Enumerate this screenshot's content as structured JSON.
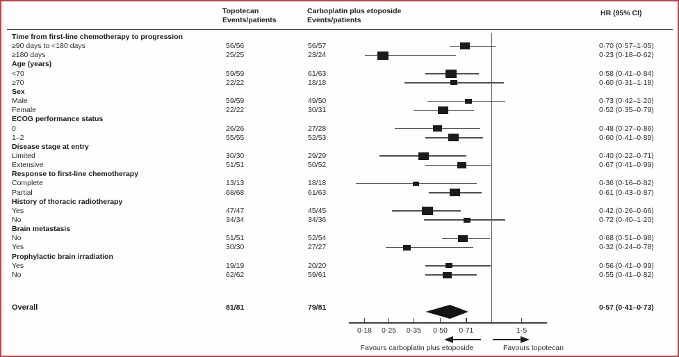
{
  "chart_data": {
    "type": "forest",
    "scale": "log",
    "col_headers": {
      "topotecan": "Topotecan",
      "carboplatin": "Carboplatin plus etoposide",
      "events": "Events/patients",
      "hr": "HR (95% CI)"
    },
    "axis": {
      "ticks": [
        {
          "v": 0.18,
          "label": "0·18"
        },
        {
          "v": 0.25,
          "label": "0·25"
        },
        {
          "v": 0.35,
          "label": "0·35"
        },
        {
          "v": 0.5,
          "label": "0·50"
        },
        {
          "v": 0.71,
          "label": "0·71"
        },
        {
          "v": 1.5,
          "label": "1·5"
        }
      ],
      "reference_value": 1.0,
      "xlim": [
        0.16,
        1.9
      ]
    },
    "favours": {
      "left": "Favours carboplatin plus etoposide",
      "right": "Favours topotecan"
    },
    "rows": [
      {
        "type": "section",
        "label": "Time from first-line chemotherapy to progression"
      },
      {
        "type": "item",
        "label": "≥90 days to <180 days",
        "t1": "56/56",
        "t2": "56/57",
        "hr": 0.7,
        "lo": 0.57,
        "hi": 1.05,
        "hr_text": "0·70 (0·57–1·05)",
        "sq": 14
      },
      {
        "type": "item",
        "label": "≥180 days",
        "t1": "25/25",
        "t2": "23/24",
        "hr": 0.23,
        "lo": 0.18,
        "hi": 0.62,
        "hr_text": "0·23 (0·18–0·62)",
        "sq": 16
      },
      {
        "type": "section",
        "label": "Age (years)"
      },
      {
        "type": "item",
        "label": "<70",
        "t1": "59/59",
        "t2": "61/63",
        "hr": 0.58,
        "lo": 0.41,
        "hi": 0.84,
        "hr_text": "0·58 (0·41–0·84)",
        "sq": 16
      },
      {
        "type": "item",
        "label": "≥70",
        "t1": "22/22",
        "t2": "18/18",
        "hr": 0.6,
        "lo": 0.31,
        "hi": 1.18,
        "hr_text": "0·60 (0·31–1·18)",
        "sq": 10
      },
      {
        "type": "section",
        "label": "Sex"
      },
      {
        "type": "item",
        "label": "Male",
        "t1": "59/59",
        "t2": "49/50",
        "hr": 0.73,
        "lo": 0.42,
        "hi": 1.2,
        "hr_text": "0·73 (0·42–1·20)",
        "sq": 10
      },
      {
        "type": "item",
        "label": "Female",
        "t1": "22/22",
        "t2": "30/31",
        "hr": 0.52,
        "lo": 0.35,
        "hi": 0.79,
        "hr_text": "0·52 (0·35–0·79)",
        "sq": 15
      },
      {
        "type": "section",
        "label": "ECOG performance status"
      },
      {
        "type": "item",
        "label": "0",
        "t1": "26/26",
        "t2": "27/28",
        "hr": 0.48,
        "lo": 0.27,
        "hi": 0.86,
        "hr_text": "0·48 (0·27–0·86)",
        "sq": 13
      },
      {
        "type": "item",
        "label": "1–2",
        "t1": "55/55",
        "t2": "52/53",
        "hr": 0.6,
        "lo": 0.41,
        "hi": 0.89,
        "hr_text": "0·60 (0·41–0·89)",
        "sq": 15
      },
      {
        "type": "section",
        "label": "Disease stage at entry"
      },
      {
        "type": "item",
        "label": "Limited",
        "t1": "30/30",
        "t2": "29/29",
        "hr": 0.4,
        "lo": 0.22,
        "hi": 0.71,
        "hr_text": "0·40 (0·22–0·71)",
        "sq": 15
      },
      {
        "type": "item",
        "label": "Extensive",
        "t1": "51/51",
        "t2": "50/52",
        "hr": 0.67,
        "lo": 0.41,
        "hi": 0.99,
        "hr_text": "0·67 (0·41–0·99)",
        "sq": 13
      },
      {
        "type": "section",
        "label": "Response to first-line chemotherapy"
      },
      {
        "type": "item",
        "label": "Complete",
        "t1": "13/13",
        "t2": "18/18",
        "hr": 0.36,
        "lo": 0.16,
        "hi": 0.82,
        "hr_text": "0·36 (0·16–0·82)",
        "sq": 9
      },
      {
        "type": "item",
        "label": "Partial",
        "t1": "68/68",
        "t2": "61/63",
        "hr": 0.61,
        "lo": 0.43,
        "hi": 0.87,
        "hr_text": "0·61 (0·43–0·87)",
        "sq": 15
      },
      {
        "type": "section",
        "label": "History of thoracic radiotherapy"
      },
      {
        "type": "item",
        "label": "Yes",
        "t1": "47/47",
        "t2": "45/45",
        "hr": 0.42,
        "lo": 0.26,
        "hi": 0.66,
        "hr_text": "0·42 (0·26–0·66)",
        "sq": 16
      },
      {
        "type": "item",
        "label": "No",
        "t1": "34/34",
        "t2": "34/36",
        "hr": 0.72,
        "lo": 0.4,
        "hi": 1.2,
        "hr_text": "0·72 (0·40–1·20)",
        "sq": 10
      },
      {
        "type": "section",
        "label": "Brain metastasis"
      },
      {
        "type": "item",
        "label": "No",
        "t1": "51/51",
        "t2": "52/54",
        "hr": 0.68,
        "lo": 0.51,
        "hi": 0.98,
        "hr_text": "0·68 (0·51–0·98)",
        "sq": 14
      },
      {
        "type": "item",
        "label": "Yes",
        "t1": "30/30",
        "t2": "27/27",
        "hr": 0.32,
        "lo": 0.24,
        "hi": 0.78,
        "hr_text": "0·32 (0·24–0·78)",
        "sq": 11
      },
      {
        "type": "section",
        "label": "Prophylactic brain irradiation"
      },
      {
        "type": "item",
        "label": "Yes",
        "t1": "19/19",
        "t2": "20/20",
        "hr": 0.56,
        "lo": 0.41,
        "hi": 0.99,
        "hr_text": "0·56 (0·41–0·99)",
        "sq": 10
      },
      {
        "type": "item",
        "label": "No",
        "t1": "62/62",
        "t2": "59/61",
        "hr": 0.55,
        "lo": 0.41,
        "hi": 0.82,
        "hr_text": "0·55 (0·41–0·82)",
        "sq": 13
      }
    ],
    "overall": {
      "label": "Overall",
      "t1": "81/81",
      "t2": "79/81",
      "hr": 0.57,
      "lo": 0.41,
      "hi": 0.73,
      "hr_text": "0·57 (0·41–0·73)"
    }
  }
}
